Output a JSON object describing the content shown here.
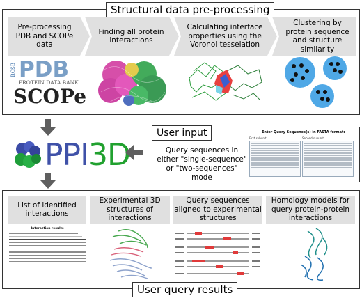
{
  "sections": {
    "preprocessing_title": "Structural data pre-processing",
    "user_input_title": "User input",
    "results_title": "User query results"
  },
  "steps": {
    "step1": "Pre-processing PDB and SCOPe data",
    "step2": "Finding all protein interactions",
    "step3": "Calculating interface properties using the Voronoi tesselation",
    "step4": "Clustering by protein sequence and structure similarity"
  },
  "logos": {
    "pdb_rcsb": "RCSB",
    "pdb_main": "PDB",
    "pdb_sub": "PROTEIN DATA BANK",
    "scope": "SCOPe",
    "ppi": "PPI",
    "three_d": "3D"
  },
  "user_input": {
    "description": "Query sequences in either \"single-sequence\" or \"two-sequences\" mode",
    "form_title": "Enter Query Sequence(s) in FASTA format:",
    "first_subunit": "First subunit:",
    "second_subunit": "Second subunit:"
  },
  "results": {
    "r1": "List of identified interactions",
    "r2": "Experimental 3D structures of interactions",
    "r3": "Query sequences aligned to experimental structures",
    "r4": "Homology models for query protein-protein interactions",
    "table_title": "Interaction results"
  },
  "colors": {
    "ppi_blue": "#3f51a8",
    "three_d_green": "#21a12f",
    "step_gray": "#e0e0e0",
    "cluster_blue": "#4fa8e6"
  }
}
